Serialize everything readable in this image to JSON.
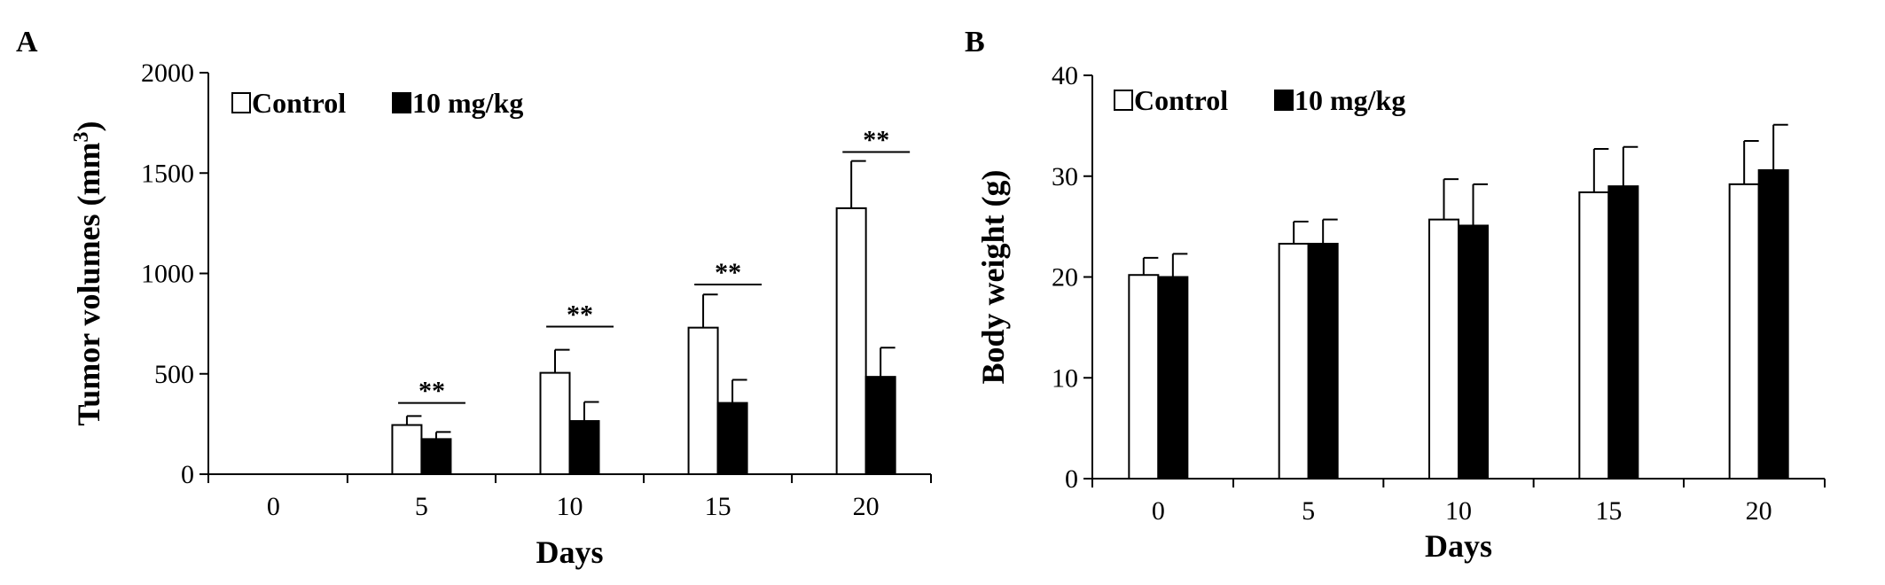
{
  "chart_data": [
    {
      "panel_label": "A",
      "type": "bar",
      "xlabel": "Days",
      "ylabel": "Tumor volumes (mm",
      "ylabel_superscript": "3",
      "ylabel_suffix": ")",
      "categories": [
        "0",
        "5",
        "10",
        "15",
        "20"
      ],
      "ylim": [
        0,
        2000
      ],
      "yticks": [
        0,
        500,
        1000,
        1500,
        2000
      ],
      "legend_position": "top-left",
      "series": [
        {
          "name": "Control",
          "fill": "#ffffff",
          "values": [
            0,
            245,
            505,
            730,
            1325
          ],
          "errors": [
            0,
            45,
            115,
            165,
            235
          ]
        },
        {
          "name": "10 mg/kg",
          "fill": "#000000",
          "values": [
            0,
            175,
            265,
            355,
            485
          ],
          "errors": [
            0,
            35,
            95,
            115,
            145
          ]
        }
      ],
      "annotations": [
        {
          "category": "5",
          "text": "**",
          "y": 355
        },
        {
          "category": "10",
          "text": "**",
          "y": 735
        },
        {
          "category": "15",
          "text": "**",
          "y": 945
        },
        {
          "category": "20",
          "text": "**",
          "y": 1605
        }
      ]
    },
    {
      "panel_label": "B",
      "type": "bar",
      "xlabel": "Days",
      "ylabel": "Body weight (g)",
      "categories": [
        "0",
        "5",
        "10",
        "15",
        "20"
      ],
      "ylim": [
        0,
        40
      ],
      "yticks": [
        0,
        10,
        20,
        30,
        40
      ],
      "legend_position": "top-left",
      "series": [
        {
          "name": "Control",
          "fill": "#ffffff",
          "values": [
            20.2,
            23.3,
            25.7,
            28.4,
            29.2
          ],
          "errors": [
            1.7,
            2.2,
            4.0,
            4.3,
            4.3
          ]
        },
        {
          "name": "10 mg/kg",
          "fill": "#000000",
          "values": [
            20.0,
            23.3,
            25.1,
            29.0,
            30.6
          ],
          "errors": [
            2.3,
            2.4,
            4.1,
            3.9,
            4.5
          ]
        }
      ]
    }
  ]
}
